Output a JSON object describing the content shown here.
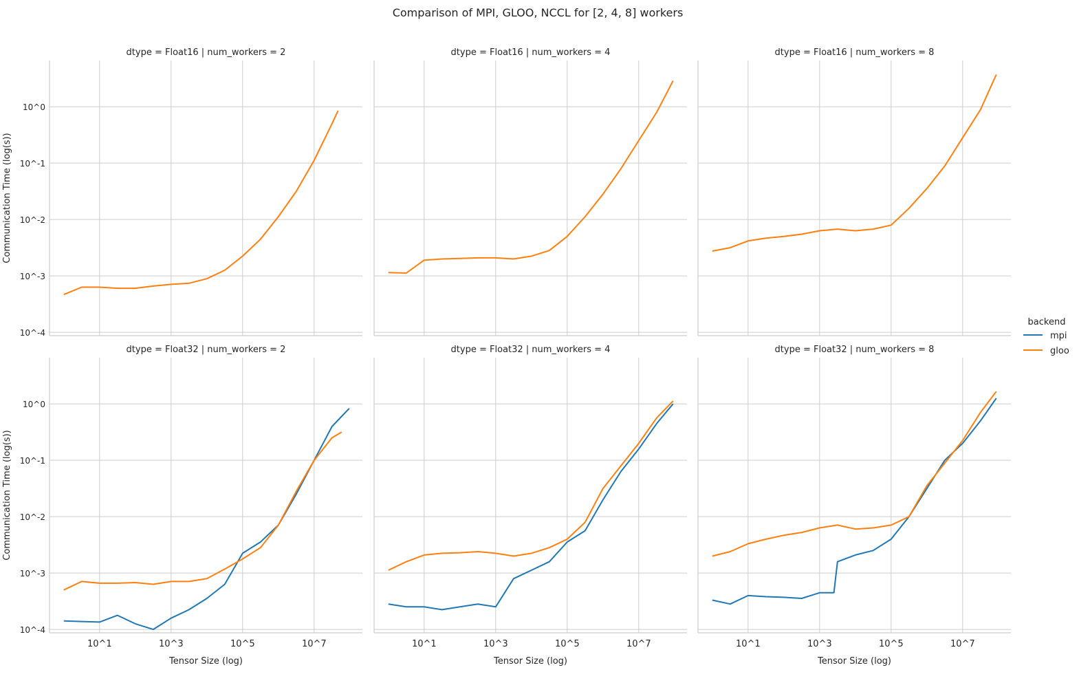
{
  "chart_data": {
    "type": "line",
    "title": "Comparison of MPI, GLOO, NCCL for [2, 4, 8] workers",
    "xlabel": "Tensor Size (log)",
    "ylabel": "Communication Time (log(s))",
    "xscale": "log",
    "yscale": "log",
    "x_ticks": [
      "10^1",
      "10^3",
      "10^5",
      "10^7"
    ],
    "x_tick_values_log10": [
      1,
      3,
      5,
      7
    ],
    "y_ticks": [
      "10^0",
      "10^-1",
      "10^-2",
      "10^-3",
      "10^-4"
    ],
    "y_tick_values_log10": [
      0,
      -1,
      -2,
      -3,
      -4
    ],
    "xlim_log10": [
      -0.4,
      8.35
    ],
    "ylim_log10": [
      -4.06,
      0.82
    ],
    "grid": true,
    "legend": {
      "title": "backend",
      "placement": "center-right",
      "entries": [
        "mpi",
        "gloo"
      ]
    },
    "colors": {
      "mpi": "#1f77b4",
      "gloo": "#ff7f0e"
    },
    "note": "series values given as log10(x) and log10(y)",
    "panels": [
      {
        "title": "dtype = Float16 | num_workers = 2",
        "series": [
          {
            "name": "gloo",
            "log10_x": [
              0,
              0.5,
              1,
              1.5,
              2,
              2.5,
              3,
              3.5,
              4,
              4.5,
              5,
              5.5,
              6,
              6.5,
              7,
              7.5,
              7.67
            ],
            "log10_y": [
              -3.33,
              -3.2,
              -3.2,
              -3.22,
              -3.22,
              -3.18,
              -3.15,
              -3.13,
              -3.05,
              -2.9,
              -2.65,
              -2.35,
              -1.95,
              -1.5,
              -0.95,
              -0.3,
              -0.07
            ]
          }
        ]
      },
      {
        "title": "dtype = Float16 | num_workers = 4",
        "series": [
          {
            "name": "gloo",
            "log10_x": [
              0,
              0.5,
              1,
              1.5,
              2,
              2.5,
              3,
              3.5,
              4,
              4.5,
              5,
              5.5,
              6,
              6.5,
              7,
              7.5,
              7.96
            ],
            "log10_y": [
              -2.94,
              -2.95,
              -2.72,
              -2.7,
              -2.69,
              -2.68,
              -2.68,
              -2.7,
              -2.65,
              -2.55,
              -2.3,
              -1.95,
              -1.55,
              -1.1,
              -0.6,
              -0.1,
              0.46
            ]
          }
        ]
      },
      {
        "title": "dtype = Float16 | num_workers = 8",
        "series": [
          {
            "name": "gloo",
            "log10_x": [
              0,
              0.5,
              1,
              1.5,
              2,
              2.5,
              3,
              3.5,
              4,
              4.5,
              5,
              5.5,
              6,
              6.5,
              7,
              7.5,
              7.94
            ],
            "log10_y": [
              -2.56,
              -2.5,
              -2.38,
              -2.33,
              -2.3,
              -2.26,
              -2.2,
              -2.17,
              -2.2,
              -2.17,
              -2.1,
              -1.8,
              -1.45,
              -1.05,
              -0.55,
              -0.05,
              0.57
            ]
          }
        ]
      },
      {
        "title": "dtype = Float32 | num_workers = 2",
        "series": [
          {
            "name": "mpi",
            "log10_x": [
              0,
              0.5,
              1,
              1.5,
              2,
              2.5,
              3,
              3.5,
              4,
              4.5,
              5,
              5.5,
              6,
              6.5,
              7,
              7.5,
              7.98
            ],
            "log10_y": [
              -3.85,
              -3.86,
              -3.87,
              -3.75,
              -3.9,
              -4.0,
              -3.8,
              -3.65,
              -3.45,
              -3.2,
              -2.65,
              -2.45,
              -2.15,
              -1.6,
              -1.0,
              -0.4,
              -0.08
            ]
          },
          {
            "name": "gloo",
            "log10_x": [
              0,
              0.5,
              1,
              1.5,
              2,
              2.5,
              3,
              3.5,
              4,
              4.5,
              5,
              5.5,
              6,
              6.5,
              7,
              7.5,
              7.77
            ],
            "log10_y": [
              -3.3,
              -3.15,
              -3.18,
              -3.18,
              -3.17,
              -3.2,
              -3.15,
              -3.15,
              -3.1,
              -2.93,
              -2.75,
              -2.55,
              -2.15,
              -1.55,
              -1.0,
              -0.6,
              -0.5
            ]
          }
        ]
      },
      {
        "title": "dtype = Float32 | num_workers = 4",
        "series": [
          {
            "name": "mpi",
            "log10_x": [
              0,
              0.5,
              1,
              1.5,
              2,
              2.5,
              3,
              3.5,
              4,
              4.5,
              5,
              5.5,
              6,
              6.5,
              7,
              7.5,
              7.96
            ],
            "log10_y": [
              -3.55,
              -3.6,
              -3.6,
              -3.65,
              -3.6,
              -3.55,
              -3.6,
              -3.1,
              -2.95,
              -2.8,
              -2.45,
              -2.25,
              -1.7,
              -1.2,
              -0.8,
              -0.35,
              0.0
            ]
          },
          {
            "name": "gloo",
            "log10_x": [
              0,
              0.5,
              1,
              1.5,
              2,
              2.5,
              3,
              3.5,
              4,
              4.5,
              5,
              5.5,
              6,
              6.5,
              7,
              7.5,
              7.96
            ],
            "log10_y": [
              -2.95,
              -2.8,
              -2.68,
              -2.65,
              -2.64,
              -2.62,
              -2.65,
              -2.7,
              -2.65,
              -2.55,
              -2.4,
              -2.1,
              -1.5,
              -1.1,
              -0.7,
              -0.25,
              0.05
            ]
          }
        ]
      },
      {
        "title": "dtype = Float32 | num_workers = 8",
        "series": [
          {
            "name": "mpi",
            "log10_x": [
              0,
              0.5,
              1,
              1.5,
              2,
              2.5,
              3,
              3.4,
              3.5,
              4,
              4.5,
              5,
              5.5,
              6,
              6.5,
              7,
              7.5,
              7.94
            ],
            "log10_y": [
              -3.48,
              -3.55,
              -3.4,
              -3.42,
              -3.43,
              -3.45,
              -3.35,
              -3.35,
              -2.8,
              -2.68,
              -2.6,
              -2.4,
              -2.0,
              -1.5,
              -1.0,
              -0.7,
              -0.3,
              0.1
            ]
          },
          {
            "name": "gloo",
            "log10_x": [
              0,
              0.5,
              1,
              1.5,
              2,
              2.5,
              3,
              3.5,
              4,
              4.5,
              5,
              5.5,
              6,
              6.5,
              7,
              7.5,
              7.94
            ],
            "log10_y": [
              -2.7,
              -2.62,
              -2.48,
              -2.4,
              -2.33,
              -2.28,
              -2.2,
              -2.15,
              -2.22,
              -2.2,
              -2.15,
              -2.0,
              -1.45,
              -1.05,
              -0.65,
              -0.15,
              0.22
            ]
          }
        ]
      }
    ]
  }
}
